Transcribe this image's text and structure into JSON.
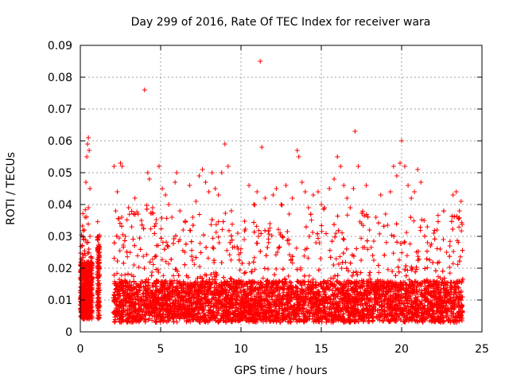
{
  "chart_data": {
    "type": "scatter",
    "title": "Day 299 of 2016, Rate Of TEC Index for receiver wara",
    "xlabel": "GPS time / hours",
    "ylabel": "ROTI / TECUs",
    "xlim": [
      0,
      25
    ],
    "ylim": [
      0,
      0.09
    ],
    "xticks": [
      0,
      5,
      10,
      15,
      20,
      25
    ],
    "xtick_labels": [
      "0",
      "5",
      "10",
      "15",
      "20",
      "25"
    ],
    "yticks": [
      0,
      0.01,
      0.02,
      0.03,
      0.04,
      0.05,
      0.06,
      0.07,
      0.08,
      0.09
    ],
    "ytick_labels": [
      "0",
      "0.01",
      "0.02",
      "0.03",
      "0.04",
      "0.05",
      "0.06",
      "0.07",
      "0.08",
      "0.09"
    ],
    "grid": true,
    "marker": "+",
    "color": "#ff0000",
    "series": [
      {
        "name": "ROTI",
        "points": [
          [
            0.2,
            0.018
          ],
          [
            0.25,
            0.032
          ],
          [
            0.3,
            0.036
          ],
          [
            0.35,
            0.047
          ],
          [
            0.4,
            0.055
          ],
          [
            0.45,
            0.059
          ],
          [
            0.5,
            0.061
          ],
          [
            0.55,
            0.057
          ],
          [
            0.6,
            0.045
          ],
          [
            0.5,
            0.039
          ],
          [
            0.4,
            0.028
          ],
          [
            0.3,
            0.024
          ],
          [
            0.6,
            0.03
          ],
          [
            0.65,
            0.022
          ],
          [
            2.1,
            0.052
          ],
          [
            2.2,
            0.038
          ],
          [
            2.3,
            0.044
          ],
          [
            2.5,
            0.053
          ],
          [
            2.6,
            0.052
          ],
          [
            2.8,
            0.03
          ],
          [
            3.0,
            0.039
          ],
          [
            3.2,
            0.033
          ],
          [
            3.4,
            0.042
          ],
          [
            3.6,
            0.037
          ],
          [
            3.8,
            0.035
          ],
          [
            4.0,
            0.076
          ],
          [
            4.2,
            0.05
          ],
          [
            4.3,
            0.048
          ],
          [
            4.5,
            0.039
          ],
          [
            4.7,
            0.034
          ],
          [
            4.9,
            0.052
          ],
          [
            5.1,
            0.045
          ],
          [
            5.3,
            0.043
          ],
          [
            5.5,
            0.04
          ],
          [
            5.7,
            0.036
          ],
          [
            5.9,
            0.047
          ],
          [
            6.0,
            0.05
          ],
          [
            6.2,
            0.038
          ],
          [
            6.4,
            0.032
          ],
          [
            6.8,
            0.046
          ],
          [
            7.0,
            0.036
          ],
          [
            7.2,
            0.041
          ],
          [
            7.4,
            0.049
          ],
          [
            7.6,
            0.051
          ],
          [
            7.8,
            0.047
          ],
          [
            8.0,
            0.044
          ],
          [
            8.2,
            0.05
          ],
          [
            8.4,
            0.045
          ],
          [
            8.6,
            0.043
          ],
          [
            8.8,
            0.05
          ],
          [
            9.0,
            0.059
          ],
          [
            9.2,
            0.052
          ],
          [
            9.4,
            0.038
          ],
          [
            9.8,
            0.031
          ],
          [
            10.2,
            0.029
          ],
          [
            10.5,
            0.046
          ],
          [
            10.8,
            0.04
          ],
          [
            11.0,
            0.044
          ],
          [
            11.2,
            0.085
          ],
          [
            11.3,
            0.058
          ],
          [
            11.5,
            0.042
          ],
          [
            11.8,
            0.034
          ],
          [
            12.0,
            0.043
          ],
          [
            12.2,
            0.045
          ],
          [
            12.5,
            0.04
          ],
          [
            12.8,
            0.046
          ],
          [
            13.0,
            0.037
          ],
          [
            13.2,
            0.042
          ],
          [
            13.5,
            0.057
          ],
          [
            13.6,
            0.055
          ],
          [
            13.8,
            0.047
          ],
          [
            14.0,
            0.044
          ],
          [
            14.2,
            0.039
          ],
          [
            14.5,
            0.043
          ],
          [
            14.8,
            0.044
          ],
          [
            15.0,
            0.04
          ],
          [
            15.2,
            0.039
          ],
          [
            15.5,
            0.045
          ],
          [
            15.8,
            0.048
          ],
          [
            16.0,
            0.055
          ],
          [
            16.2,
            0.052
          ],
          [
            16.4,
            0.046
          ],
          [
            16.6,
            0.042
          ],
          [
            16.8,
            0.039
          ],
          [
            17.0,
            0.045
          ],
          [
            17.1,
            0.063
          ],
          [
            17.3,
            0.052
          ],
          [
            17.5,
            0.034
          ],
          [
            17.8,
            0.046
          ],
          [
            18.0,
            0.032
          ],
          [
            18.4,
            0.036
          ],
          [
            18.7,
            0.043
          ],
          [
            19.0,
            0.037
          ],
          [
            19.3,
            0.044
          ],
          [
            19.5,
            0.052
          ],
          [
            19.7,
            0.049
          ],
          [
            19.9,
            0.053
          ],
          [
            20.0,
            0.06
          ],
          [
            20.2,
            0.052
          ],
          [
            20.4,
            0.046
          ],
          [
            20.6,
            0.042
          ],
          [
            20.8,
            0.044
          ],
          [
            21.0,
            0.051
          ],
          [
            21.2,
            0.047
          ],
          [
            21.4,
            0.035
          ],
          [
            21.6,
            0.033
          ],
          [
            21.8,
            0.027
          ],
          [
            22.0,
            0.031
          ],
          [
            22.2,
            0.032
          ],
          [
            22.4,
            0.026
          ],
          [
            22.6,
            0.029
          ],
          [
            22.8,
            0.025
          ],
          [
            23.0,
            0.027
          ],
          [
            23.2,
            0.043
          ],
          [
            23.4,
            0.044
          ],
          [
            23.6,
            0.038
          ],
          [
            23.7,
            0.041
          ]
        ]
      }
    ],
    "density_segments": [
      {
        "x0": 0.0,
        "x1": 0.75,
        "base_lo": 0.004,
        "base_hi": 0.022,
        "peak": 0.035,
        "n": 600
      },
      {
        "x0": 1.05,
        "x1": 1.2,
        "base_lo": 0.004,
        "base_hi": 0.03,
        "peak": 0.032,
        "n": 140
      },
      {
        "x0": 2.05,
        "x1": 23.8,
        "base_lo": 0.003,
        "base_hi": 0.016,
        "peak": 0.036,
        "n": 6500
      }
    ]
  }
}
